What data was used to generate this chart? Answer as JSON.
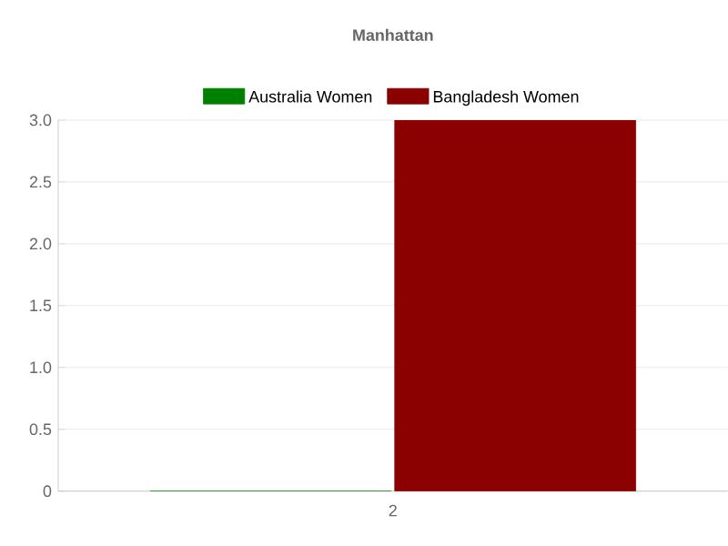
{
  "chart_data": {
    "type": "bar",
    "title": "Manhattan",
    "categories": [
      "2"
    ],
    "series": [
      {
        "name": "Australia Women",
        "color": "#008000",
        "values": [
          0
        ]
      },
      {
        "name": "Bangladesh Women",
        "color": "#8b0000",
        "values": [
          3
        ]
      }
    ],
    "ylim": [
      0,
      3
    ],
    "yticks": [
      0,
      {
        "value": 0.5,
        "label": "0.5"
      },
      {
        "value": 1,
        "label": "1.0"
      },
      {
        "value": 1.5,
        "label": "1.5"
      },
      {
        "value": 2,
        "label": "2.0"
      },
      {
        "value": 2.5,
        "label": "2.5"
      },
      {
        "value": 3,
        "label": "3.0"
      }
    ],
    "grid": "y",
    "legend": "top"
  }
}
